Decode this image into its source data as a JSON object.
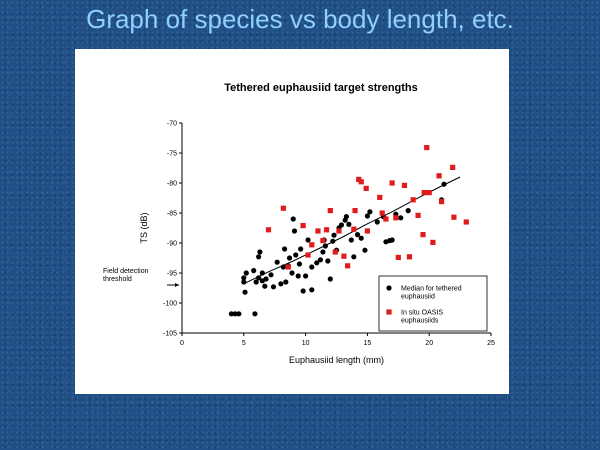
{
  "slide": {
    "title": "Graph of species vs body length, etc."
  },
  "chart_data": {
    "type": "scatter",
    "title": "Tethered euphausiid target strengths",
    "xlabel": "Euphausiid length (mm)",
    "ylabel": "TS (dB)",
    "xlim": [
      0,
      25
    ],
    "ylim": [
      -105,
      -70
    ],
    "xticks": [
      0,
      5,
      10,
      15,
      20,
      25
    ],
    "yticks": [
      -105,
      -100,
      -95,
      -90,
      -85,
      -80,
      -75,
      -70
    ],
    "grid": false,
    "legend_position": "bottom-right",
    "annotation": {
      "lines": [
        "Field detection",
        "threshold"
      ],
      "arrow_y": -97
    },
    "trend_line": {
      "x": [
        5,
        7,
        9,
        11,
        13,
        15,
        17,
        19,
        21,
        22.5
      ],
      "y": [
        -96.8,
        -94.8,
        -93.0,
        -91.0,
        -89.0,
        -86.8,
        -84.8,
        -82.6,
        -80.5,
        -79.0
      ]
    },
    "series": [
      {
        "name": "Median for tethered euphausiid",
        "marker": "circle",
        "color": "#000000",
        "points": [
          [
            4.0,
            -101.8
          ],
          [
            4.3,
            -101.8
          ],
          [
            4.6,
            -101.8
          ],
          [
            5.9,
            -101.8
          ],
          [
            5.1,
            -98.2
          ],
          [
            5.0,
            -95.8
          ],
          [
            5.2,
            -95.0
          ],
          [
            5.0,
            -96.5
          ],
          [
            5.8,
            -94.6
          ],
          [
            6.0,
            -96.5
          ],
          [
            6.2,
            -95.8
          ],
          [
            6.3,
            -91.5
          ],
          [
            6.2,
            -92.3
          ],
          [
            6.5,
            -95.0
          ],
          [
            6.5,
            -96.3
          ],
          [
            6.7,
            -97.2
          ],
          [
            6.8,
            -96.0
          ],
          [
            7.2,
            -95.3
          ],
          [
            7.4,
            -97.3
          ],
          [
            7.7,
            -93.2
          ],
          [
            8.0,
            -96.8
          ],
          [
            8.2,
            -94.0
          ],
          [
            8.3,
            -91.0
          ],
          [
            8.4,
            -96.5
          ],
          [
            8.6,
            -93.8
          ],
          [
            8.7,
            -92.5
          ],
          [
            8.9,
            -95.0
          ],
          [
            9.0,
            -86.0
          ],
          [
            9.1,
            -88.0
          ],
          [
            9.2,
            -92.0
          ],
          [
            9.4,
            -95.5
          ],
          [
            9.5,
            -93.5
          ],
          [
            9.6,
            -91.0
          ],
          [
            9.8,
            -98.0
          ],
          [
            10.0,
            -95.5
          ],
          [
            10.2,
            -89.5
          ],
          [
            10.5,
            -97.8
          ],
          [
            10.5,
            -94.0
          ],
          [
            10.9,
            -93.3
          ],
          [
            11.2,
            -92.8
          ],
          [
            11.4,
            -91.5
          ],
          [
            11.5,
            -89.5
          ],
          [
            11.6,
            -90.5
          ],
          [
            11.8,
            -93.0
          ],
          [
            12.0,
            -96.0
          ],
          [
            12.2,
            -89.7
          ],
          [
            12.3,
            -88.7
          ],
          [
            12.5,
            -91.2
          ],
          [
            12.7,
            -87.5
          ],
          [
            12.9,
            -87.0
          ],
          [
            13.2,
            -86.2
          ],
          [
            13.3,
            -85.6
          ],
          [
            13.5,
            -86.9
          ],
          [
            13.7,
            -89.5
          ],
          [
            13.9,
            -92.3
          ],
          [
            14.2,
            -88.6
          ],
          [
            14.5,
            -89.2
          ],
          [
            14.8,
            -91.2
          ],
          [
            15.0,
            -85.5
          ],
          [
            15.2,
            -84.8
          ],
          [
            15.8,
            -86.5
          ],
          [
            16.3,
            -85.6
          ],
          [
            16.5,
            -89.8
          ],
          [
            16.8,
            -89.6
          ],
          [
            17.0,
            -89.5
          ],
          [
            17.3,
            -85.2
          ],
          [
            17.7,
            -85.8
          ],
          [
            18.3,
            -84.6
          ],
          [
            21.0,
            -82.8
          ],
          [
            21.2,
            -80.2
          ]
        ]
      },
      {
        "name": "In situ OASIS euphausiids",
        "marker": "square",
        "color": "#e01b1b",
        "points": [
          [
            7.0,
            -87.8
          ],
          [
            8.2,
            -84.2
          ],
          [
            8.6,
            -94.0
          ],
          [
            9.8,
            -87.1
          ],
          [
            10.2,
            -92.0
          ],
          [
            10.5,
            -90.3
          ],
          [
            11.0,
            -88.0
          ],
          [
            11.4,
            -89.6
          ],
          [
            11.7,
            -87.8
          ],
          [
            12.0,
            -84.6
          ],
          [
            12.4,
            -91.5
          ],
          [
            12.7,
            -88.0
          ],
          [
            13.1,
            -92.2
          ],
          [
            13.4,
            -93.8
          ],
          [
            13.9,
            -87.7
          ],
          [
            14.0,
            -84.6
          ],
          [
            14.3,
            -79.4
          ],
          [
            14.5,
            -79.8
          ],
          [
            14.9,
            -80.9
          ],
          [
            15.0,
            -88.0
          ],
          [
            16.0,
            -82.4
          ],
          [
            16.2,
            -85.0
          ],
          [
            16.5,
            -86.0
          ],
          [
            17.0,
            -80.0
          ],
          [
            17.3,
            -85.8
          ],
          [
            17.5,
            -92.4
          ],
          [
            18.0,
            -80.4
          ],
          [
            18.4,
            -92.3
          ],
          [
            18.7,
            -82.8
          ],
          [
            19.1,
            -85.4
          ],
          [
            19.5,
            -88.6
          ],
          [
            19.6,
            -81.6
          ],
          [
            19.8,
            -74.1
          ],
          [
            20.0,
            -81.6
          ],
          [
            20.3,
            -89.9
          ],
          [
            20.8,
            -78.8
          ],
          [
            21.0,
            -83.1
          ],
          [
            21.9,
            -77.4
          ],
          [
            22.0,
            -85.7
          ],
          [
            23.0,
            -86.5
          ]
        ]
      }
    ]
  }
}
